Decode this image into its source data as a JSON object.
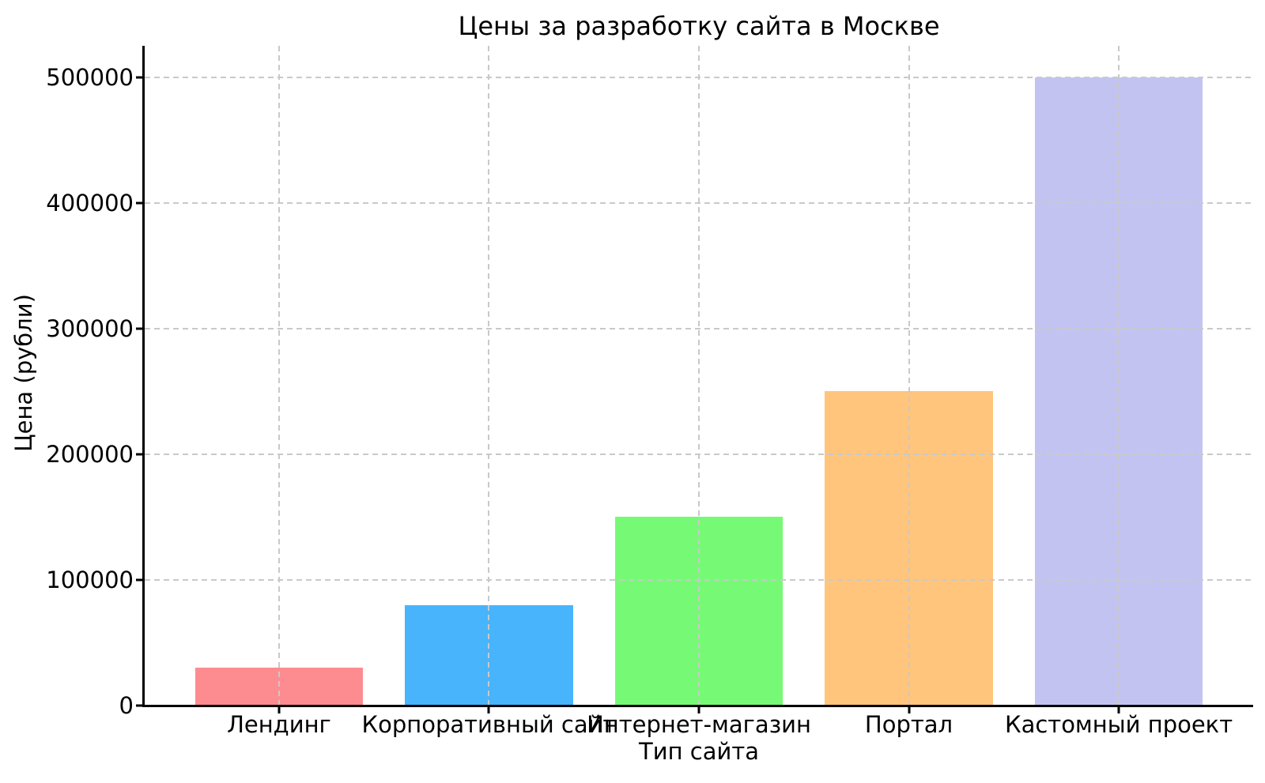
{
  "chart_data": {
    "type": "bar",
    "title": "Цены за разработку сайта в Москве",
    "xlabel": "Тип сайта",
    "ylabel": "Цена (рубли)",
    "categories": [
      "Лендинг",
      "Корпоративный сайт",
      "Интернет-магазин",
      "Портал",
      "Кастомный проект"
    ],
    "values": [
      30000,
      80000,
      150000,
      250000,
      500000
    ],
    "bar_colors": [
      "#fd8c90",
      "#47b4fc",
      "#76fa76",
      "#ffc57c",
      "#c3c3f2"
    ],
    "yticks": [
      0,
      100000,
      200000,
      300000,
      400000,
      500000
    ],
    "ylim": [
      0,
      525000
    ],
    "bar_width_units": 0.8,
    "x_margin_units": 0.64,
    "grid": "dashed",
    "grid_color": "#c9c9c9",
    "spine_color": "#000000",
    "text_color": "#000000",
    "background_color": "#ffffff",
    "legend": "none"
  }
}
